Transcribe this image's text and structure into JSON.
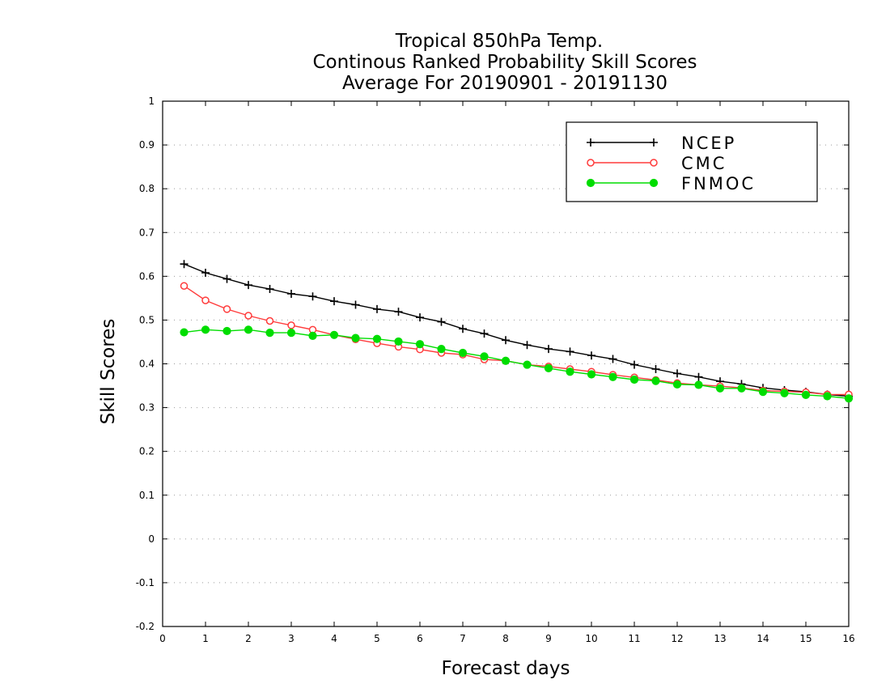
{
  "chart_data": {
    "type": "line",
    "title": [
      "Tropical 850hPa Temp.",
      "Continous Ranked Probability Skill Scores",
      "Average For 20190901 - 20191130"
    ],
    "xlabel": "Forecast days",
    "ylabel": "Skill Scores",
    "xlim": [
      0,
      16
    ],
    "ylim": [
      -0.2,
      1
    ],
    "x_ticks": [
      "0",
      "1",
      "2",
      "3",
      "4",
      "5",
      "6",
      "7",
      "8",
      "9",
      "10",
      "11",
      "12",
      "13",
      "14",
      "15",
      "16"
    ],
    "y_ticks": [
      "-0.2",
      "-0.1",
      "0",
      "0.1",
      "0.2",
      "0.3",
      "0.4",
      "0.5",
      "0.6",
      "0.7",
      "0.8",
      "0.9",
      "1"
    ],
    "grid": true,
    "legend_position": "top-right",
    "x": [
      0.5,
      1,
      1.5,
      2,
      2.5,
      3,
      3.5,
      4,
      4.5,
      5,
      5.5,
      6,
      6.5,
      7,
      7.5,
      8,
      8.5,
      9,
      9.5,
      10,
      10.5,
      11,
      11.5,
      12,
      12.5,
      13,
      13.5,
      14,
      14.5,
      15,
      15.5,
      16
    ],
    "series": [
      {
        "name": "NCEP",
        "color": "#000000",
        "marker": "plus",
        "values": [
          0.628,
          0.608,
          0.594,
          0.58,
          0.571,
          0.56,
          0.554,
          0.543,
          0.535,
          0.525,
          0.519,
          0.506,
          0.496,
          0.48,
          0.469,
          0.454,
          0.443,
          0.434,
          0.428,
          0.419,
          0.411,
          0.398,
          0.388,
          0.378,
          0.37,
          0.36,
          0.354,
          0.345,
          0.34,
          0.336,
          0.33,
          0.326
        ]
      },
      {
        "name": "CMC",
        "color": "#ff3b3b",
        "marker": "open-circle",
        "values": [
          0.578,
          0.545,
          0.525,
          0.51,
          0.498,
          0.488,
          0.478,
          0.466,
          0.456,
          0.447,
          0.439,
          0.433,
          0.425,
          0.421,
          0.41,
          0.407,
          0.398,
          0.394,
          0.388,
          0.382,
          0.375,
          0.369,
          0.363,
          0.356,
          0.352,
          0.349,
          0.345,
          0.339,
          0.337,
          0.335,
          0.33,
          0.33
        ]
      },
      {
        "name": "FNMOC",
        "color": "#00dd00",
        "marker": "filled-circle",
        "values": [
          0.472,
          0.478,
          0.475,
          0.478,
          0.471,
          0.471,
          0.464,
          0.466,
          0.459,
          0.457,
          0.451,
          0.445,
          0.434,
          0.425,
          0.417,
          0.407,
          0.398,
          0.39,
          0.382,
          0.376,
          0.37,
          0.364,
          0.361,
          0.353,
          0.352,
          0.344,
          0.344,
          0.336,
          0.333,
          0.329,
          0.326,
          0.321
        ]
      }
    ]
  }
}
